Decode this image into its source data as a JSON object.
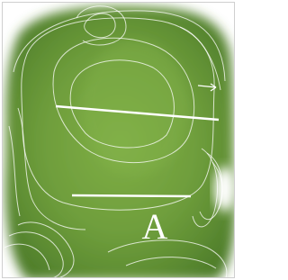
{
  "label": "A"
}
